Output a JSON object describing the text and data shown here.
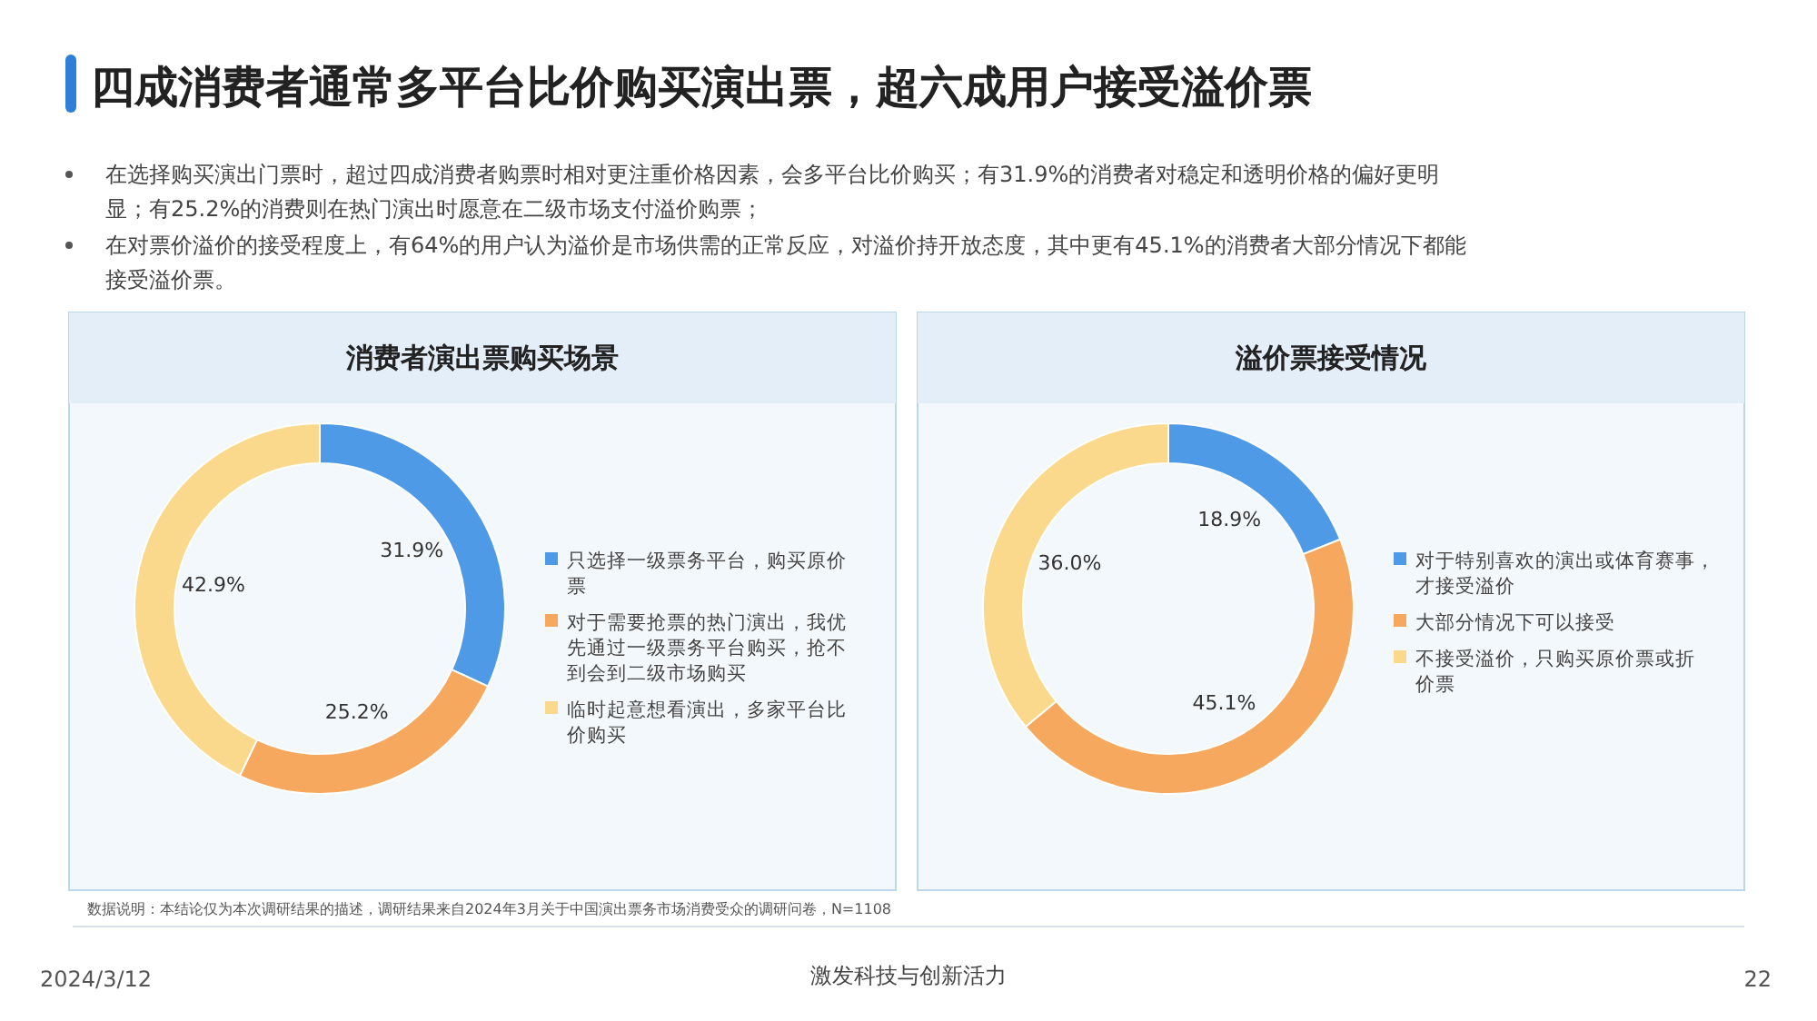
{
  "chart_data": [
    {
      "type": "donut",
      "title": "消费者演出票购买场景",
      "categories": [
        "只选择一级票务平台，购买原价票",
        "对于需要抢票的热门演出，我优先通过一级票务平台购买，抢不到会到二级市场购买",
        "临时起意想看演出，多家平台比价购买"
      ],
      "values": [
        31.9,
        25.2,
        42.9
      ],
      "value_labels": [
        "31.9%",
        "25.2%",
        "42.9%"
      ],
      "colors": [
        "#4f9ae6",
        "#f5a85e",
        "#fbd98c"
      ],
      "legend": "right",
      "annotations": [
        "四成消费者通常多平台比价购买演出票，超六成用户接受溢价票",
        "在选择购买演出门票时，超过四成消费者购票时相对更注重价格因素，会多平台比价购买；有31.9%的消费者对稳定和透明价格的偏好更明显；有25.2%的消费则在热门演出时愿意在二级市场支付溢价购票；",
        "在对票价溢价的接受程度上，有64%的用户认为溢价是市场供需的正常反应，对溢价持开放态度，其中更有45.1%的消费者大部分情况下都能接受溢价票。",
        "数据说明：本结论仅为本次调研结果的描述，调研结果来自2024年3月关于中国演出票务市场消费受众的调研问卷，N=1108",
        "2024/3/12",
        "激发科技与创新活力",
        "22"
      ]
    },
    {
      "type": "donut",
      "title": "溢价票接受情况",
      "categories": [
        "对于特别喜欢的演出或体育赛事，才接受溢价",
        "大部分情况下可以接受",
        "不接受溢价，只购买原价票或折价票"
      ],
      "values": [
        18.9,
        45.1,
        36.0
      ],
      "value_labels": [
        "18.9%",
        "45.1%",
        "36.0%"
      ],
      "colors": [
        "#4f9ae6",
        "#f5a85e",
        "#fbd98c"
      ],
      "legend": "right"
    }
  ]
}
